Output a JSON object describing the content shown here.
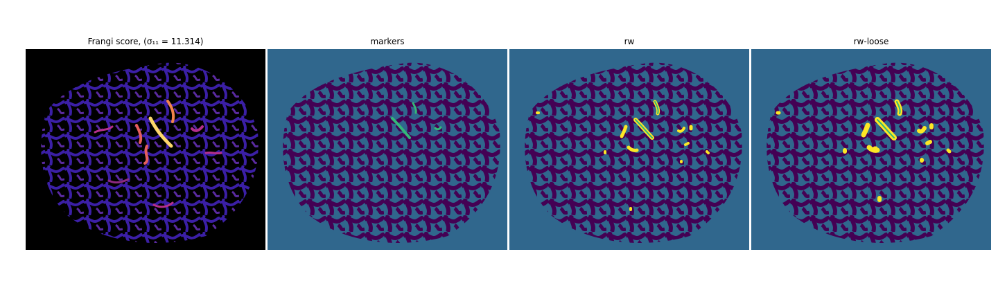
{
  "figure": {
    "panels": [
      {
        "id": "frangi",
        "title": "Frangi score, (σ₁₁ = 11.314)"
      },
      {
        "id": "markers",
        "title": "markers"
      },
      {
        "id": "rw",
        "title": "rw"
      },
      {
        "id": "rw-loose",
        "title": "rw-loose"
      }
    ]
  },
  "colors": {
    "frangi_background": "#000000",
    "frangi_vessel": "#3b1fa6",
    "frangi_highlight_low": "#b52f8c",
    "frangi_highlight_mid": "#f2844b",
    "frangi_highlight_high": "#fcfdbf",
    "seg_background": "#30678d",
    "seg_network": "#440154",
    "seg_marker": "#35b779",
    "seg_highlight": "#fde725"
  }
}
